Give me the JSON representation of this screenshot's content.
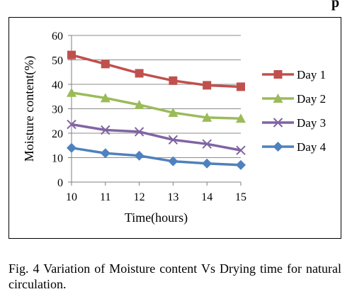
{
  "corner_mark": "p",
  "caption": "Fig. 4 Variation of Moisture content Vs Drying time for natural circulation.",
  "chart_data": {
    "type": "line",
    "title": "",
    "xlabel": "Time(hours)",
    "ylabel": "Moisture content(%)",
    "x": [
      10,
      11,
      12,
      13,
      14,
      15
    ],
    "ylim": [
      0,
      60
    ],
    "yticks": [
      0,
      10,
      20,
      30,
      40,
      50,
      60
    ],
    "grid": "horizontal",
    "legend_position": "right",
    "series": [
      {
        "name": "Day 1",
        "values": [
          52,
          48.3,
          44.5,
          41.5,
          39.6,
          39
        ],
        "color": "#c0504d",
        "marker": "square-icon"
      },
      {
        "name": "Day 2",
        "values": [
          36.6,
          34.4,
          31.6,
          28.4,
          26.4,
          26
        ],
        "color": "#9bbb59",
        "marker": "triangle-icon"
      },
      {
        "name": "Day 3",
        "values": [
          23.6,
          21.3,
          20.6,
          17.3,
          15.6,
          13
        ],
        "color": "#8064a2",
        "marker": "x-icon"
      },
      {
        "name": "Day 4",
        "values": [
          14,
          11.8,
          10.8,
          8.5,
          7.6,
          7
        ],
        "color": "#4f81bd",
        "marker": "diamond-icon"
      }
    ]
  }
}
